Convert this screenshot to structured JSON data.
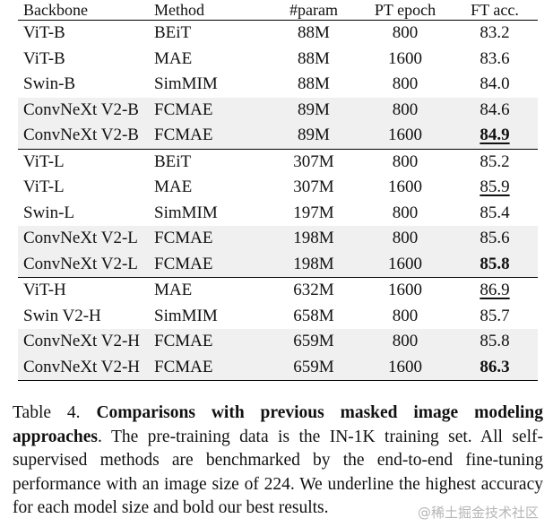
{
  "table": {
    "headers": [
      "Backbone",
      "Method",
      "#param",
      "PT epoch",
      "FT acc."
    ],
    "groups": [
      [
        {
          "backbone": "ViT-B",
          "method": "BEiT",
          "param": "88M",
          "epoch": "800",
          "acc": "83.2",
          "shade": false,
          "bold": false,
          "underline": false
        },
        {
          "backbone": "ViT-B",
          "method": "MAE",
          "param": "88M",
          "epoch": "1600",
          "acc": "83.6",
          "shade": false,
          "bold": false,
          "underline": false
        },
        {
          "backbone": "Swin-B",
          "method": "SimMIM",
          "param": "88M",
          "epoch": "800",
          "acc": "84.0",
          "shade": false,
          "bold": false,
          "underline": false
        },
        {
          "backbone": "ConvNeXt V2-B",
          "method": "FCMAE",
          "param": "89M",
          "epoch": "800",
          "acc": "84.6",
          "shade": true,
          "bold": false,
          "underline": false
        },
        {
          "backbone": "ConvNeXt V2-B",
          "method": "FCMAE",
          "param": "89M",
          "epoch": "1600",
          "acc": "84.9",
          "shade": true,
          "bold": true,
          "underline": true
        }
      ],
      [
        {
          "backbone": "ViT-L",
          "method": "BEiT",
          "param": "307M",
          "epoch": "800",
          "acc": "85.2",
          "shade": false,
          "bold": false,
          "underline": false
        },
        {
          "backbone": "ViT-L",
          "method": "MAE",
          "param": "307M",
          "epoch": "1600",
          "acc": "85.9",
          "shade": false,
          "bold": false,
          "underline": true
        },
        {
          "backbone": "Swin-L",
          "method": "SimMIM",
          "param": "197M",
          "epoch": "800",
          "acc": "85.4",
          "shade": false,
          "bold": false,
          "underline": false
        },
        {
          "backbone": "ConvNeXt V2-L",
          "method": "FCMAE",
          "param": "198M",
          "epoch": "800",
          "acc": "85.6",
          "shade": true,
          "bold": false,
          "underline": false
        },
        {
          "backbone": "ConvNeXt V2-L",
          "method": "FCMAE",
          "param": "198M",
          "epoch": "1600",
          "acc": "85.8",
          "shade": true,
          "bold": true,
          "underline": false
        }
      ],
      [
        {
          "backbone": "ViT-H",
          "method": "MAE",
          "param": "632M",
          "epoch": "1600",
          "acc": "86.9",
          "shade": false,
          "bold": false,
          "underline": true
        },
        {
          "backbone": "Swin V2-H",
          "method": "SimMIM",
          "param": "658M",
          "epoch": "800",
          "acc": "85.7",
          "shade": false,
          "bold": false,
          "underline": false
        },
        {
          "backbone": "ConvNeXt V2-H",
          "method": "FCMAE",
          "param": "659M",
          "epoch": "800",
          "acc": "85.8",
          "shade": true,
          "bold": false,
          "underline": false
        },
        {
          "backbone": "ConvNeXt V2-H",
          "method": "FCMAE",
          "param": "659M",
          "epoch": "1600",
          "acc": "86.3",
          "shade": true,
          "bold": true,
          "underline": false
        }
      ]
    ]
  },
  "caption": {
    "label": "Table 4.",
    "title": "Comparisons with previous masked image modeling approaches",
    "body": ". The pre-training data is the IN-1K training set. All self-supervised methods are benchmarked by the end-to-end fine-tuning performance with an image size of 224. We underline the highest accuracy for each model size and bold our best results."
  },
  "watermark": "@稀土掘金技术社区"
}
